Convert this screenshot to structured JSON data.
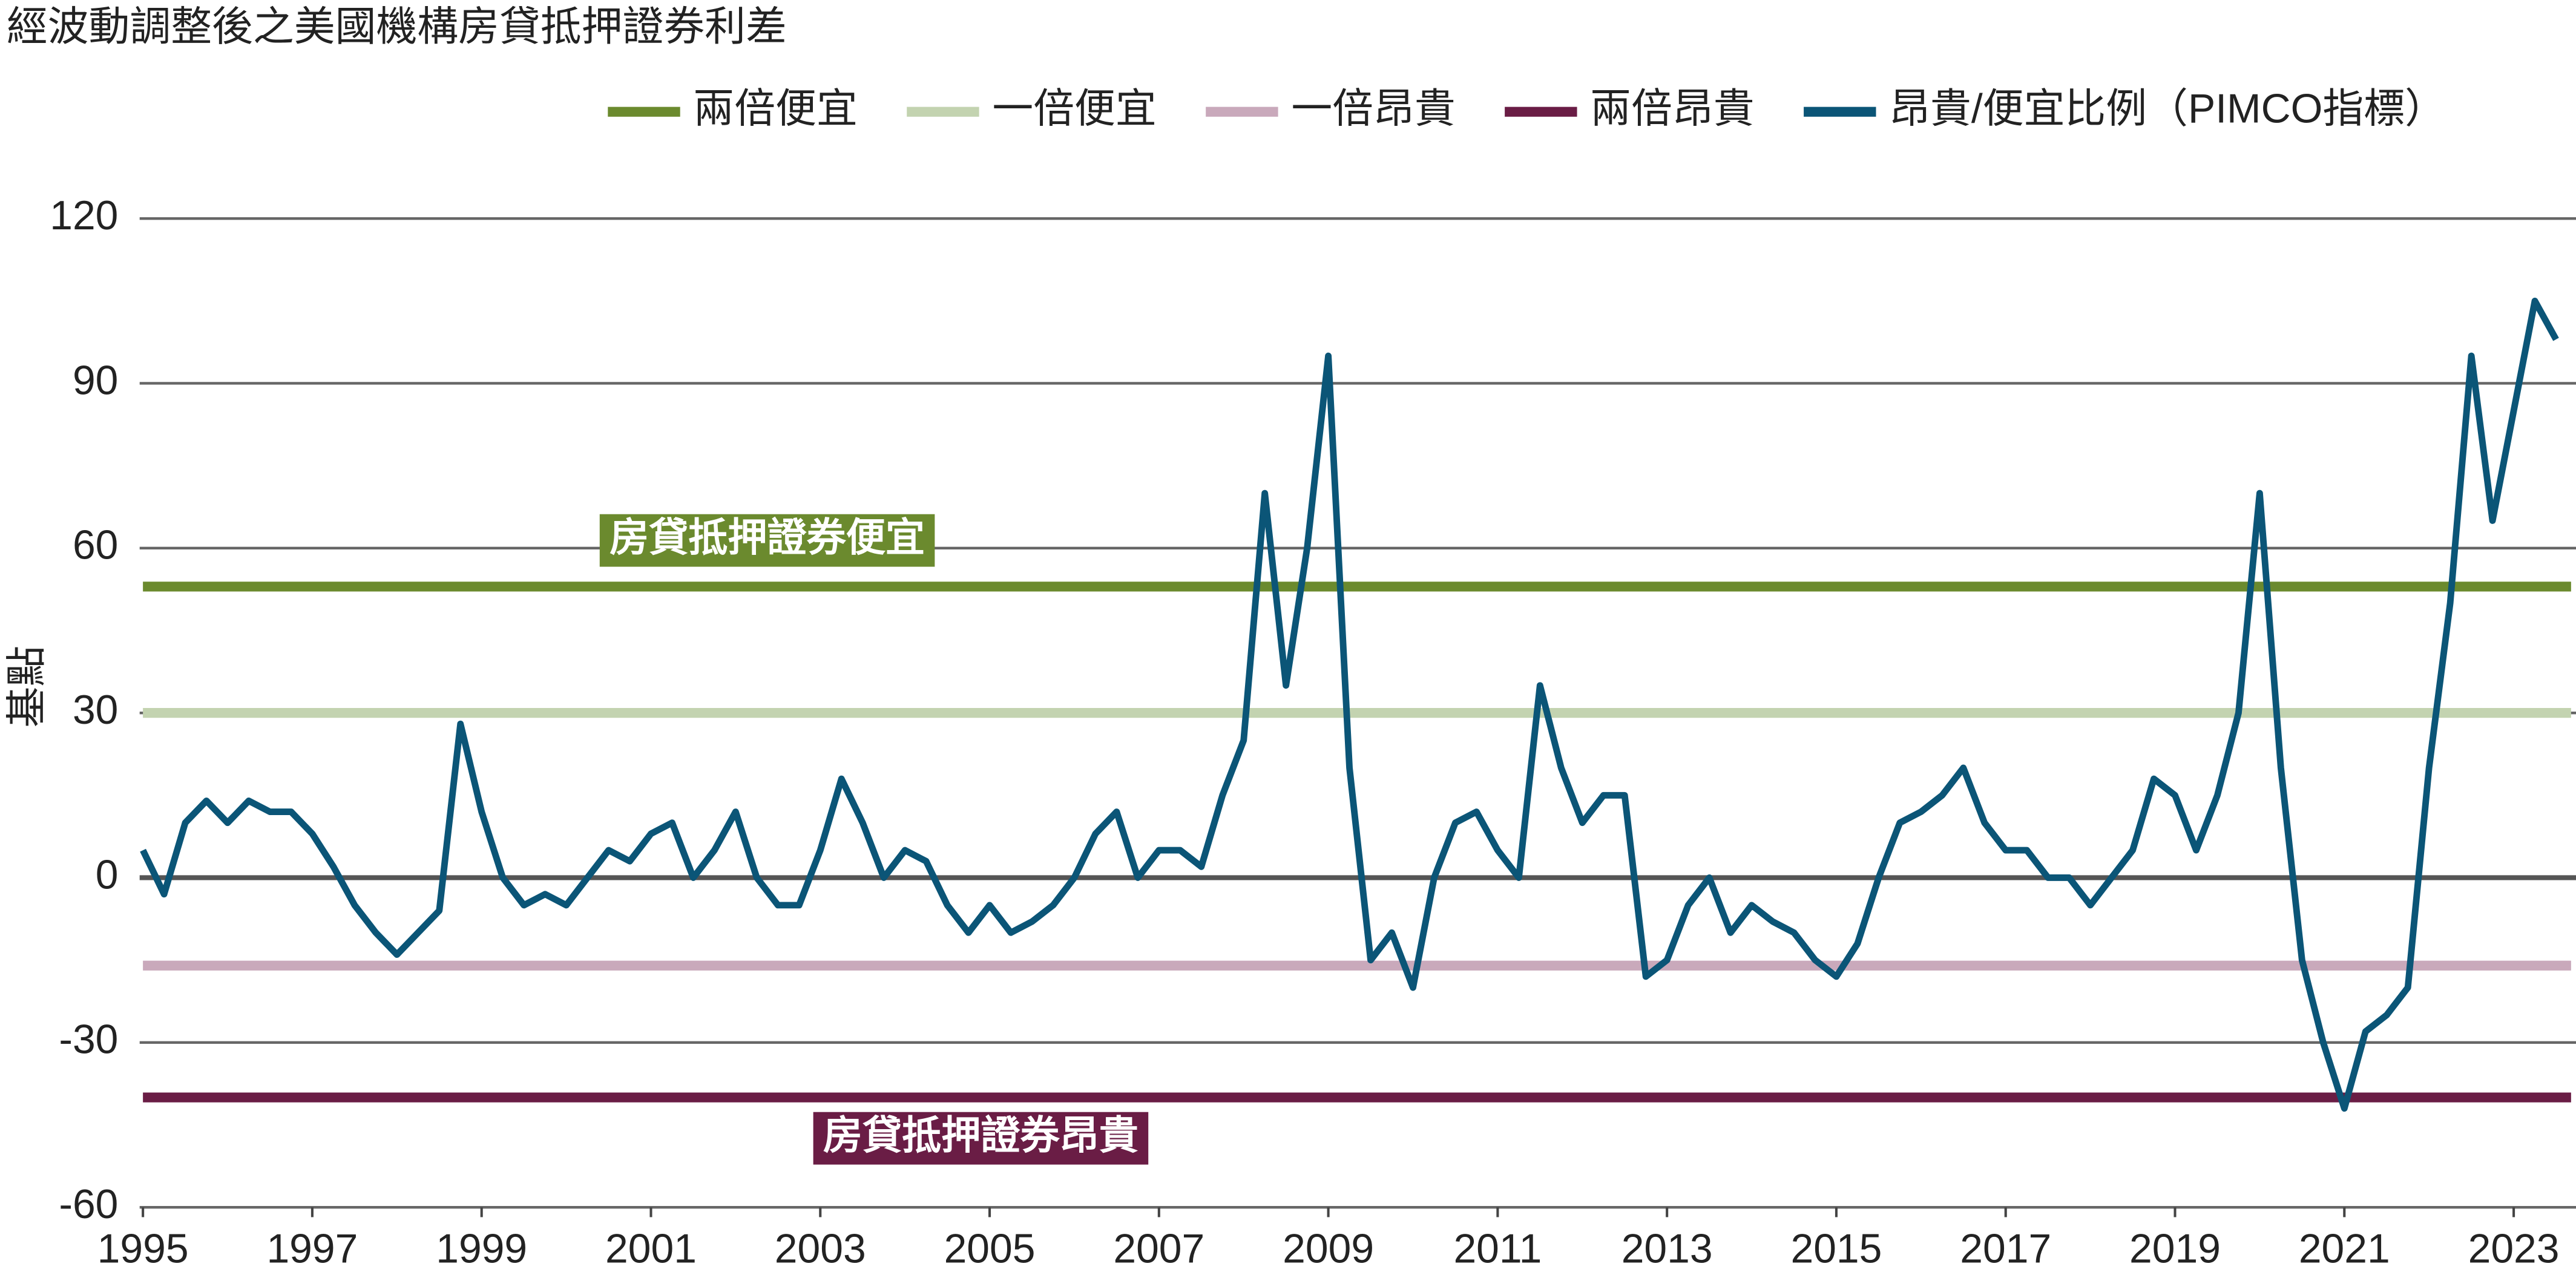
{
  "chart_data": {
    "type": "line",
    "title": "經波動調整後之美國機構房貸抵押證券利差",
    "y_label": "基點",
    "xlim": [
      1995,
      2023.6
    ],
    "xticks": [
      1995,
      1997,
      1999,
      2001,
      2003,
      2005,
      2007,
      2009,
      2011,
      2013,
      2015,
      2017,
      2019,
      2021,
      2023
    ],
    "ylim": [
      -60,
      120
    ],
    "yticks": [
      -60,
      -30,
      0,
      30,
      60,
      90,
      120
    ],
    "grid": true,
    "hlines": [
      {
        "name": "兩倍便宜",
        "color": "#6b8a2e",
        "value": 53
      },
      {
        "name": "一倍便宜",
        "color": "#c3d3b0",
        "value": 30
      },
      {
        "name": "一倍昂貴",
        "color": "#c9a9bb",
        "value": -16
      },
      {
        "name": "兩倍昂貴",
        "color": "#6a1d45",
        "value": -40
      }
    ],
    "annotations": [
      {
        "text": "房貸抵押證券便宜",
        "color": "#6b8a2e"
      },
      {
        "text": "房貸抵押證券昂貴",
        "color": "#6a1d45"
      }
    ],
    "x": [
      1995,
      1995.25,
      1995.5,
      1995.75,
      1996,
      1996.25,
      1996.5,
      1996.75,
      1997,
      1997.25,
      1997.5,
      1997.75,
      1998,
      1998.25,
      1998.5,
      1998.75,
      1999,
      1999.25,
      1999.5,
      1999.75,
      2000,
      2000.25,
      2000.5,
      2000.75,
      2001,
      2001.25,
      2001.5,
      2001.75,
      2002,
      2002.25,
      2002.5,
      2002.75,
      2003,
      2003.25,
      2003.5,
      2003.75,
      2004,
      2004.25,
      2004.5,
      2004.75,
      2005,
      2005.25,
      2005.5,
      2005.75,
      2006,
      2006.25,
      2006.5,
      2006.75,
      2007,
      2007.25,
      2007.5,
      2007.75,
      2008,
      2008.25,
      2008.5,
      2008.75,
      2009,
      2009.25,
      2009.5,
      2009.75,
      2010,
      2010.25,
      2010.5,
      2010.75,
      2011,
      2011.25,
      2011.5,
      2011.75,
      2012,
      2012.25,
      2012.5,
      2012.75,
      2013,
      2013.25,
      2013.5,
      2013.75,
      2014,
      2014.25,
      2014.5,
      2014.75,
      2015,
      2015.25,
      2015.5,
      2015.75,
      2016,
      2016.25,
      2016.5,
      2016.75,
      2017,
      2017.25,
      2017.5,
      2017.75,
      2018,
      2018.25,
      2018.5,
      2018.75,
      2019,
      2019.25,
      2019.5,
      2019.75,
      2020,
      2020.25,
      2020.5,
      2020.75,
      2021,
      2021.25,
      2021.5,
      2021.75,
      2022,
      2022.25,
      2022.5,
      2022.75,
      2023,
      2023.25,
      2023.5
    ],
    "series": [
      {
        "name": "昂貴/便宜比例（PIMCO指標）",
        "color": "#0b5577",
        "values": [
          5,
          -3,
          10,
          14,
          10,
          14,
          12,
          12,
          8,
          2,
          -5,
          -10,
          -14,
          -10,
          -6,
          28,
          12,
          0,
          -5,
          -3,
          -5,
          0,
          5,
          3,
          8,
          10,
          0,
          5,
          12,
          0,
          -5,
          -5,
          5,
          18,
          10,
          0,
          5,
          3,
          -5,
          -10,
          -5,
          -10,
          -8,
          -5,
          0,
          8,
          12,
          0,
          5,
          5,
          2,
          15,
          25,
          70,
          35,
          60,
          95,
          20,
          -15,
          -10,
          -20,
          0,
          10,
          12,
          5,
          0,
          35,
          20,
          10,
          15,
          15,
          -18,
          -15,
          -5,
          0,
          -10,
          -5,
          -8,
          -10,
          -15,
          -18,
          -12,
          0,
          10,
          12,
          15,
          20,
          10,
          5,
          5,
          0,
          0,
          -5,
          0,
          5,
          18,
          15,
          5,
          15,
          30,
          70,
          20,
          -15,
          -30,
          -42,
          -28,
          -25,
          -20,
          20,
          50,
          95,
          65,
          85,
          105,
          98
        ]
      }
    ]
  }
}
